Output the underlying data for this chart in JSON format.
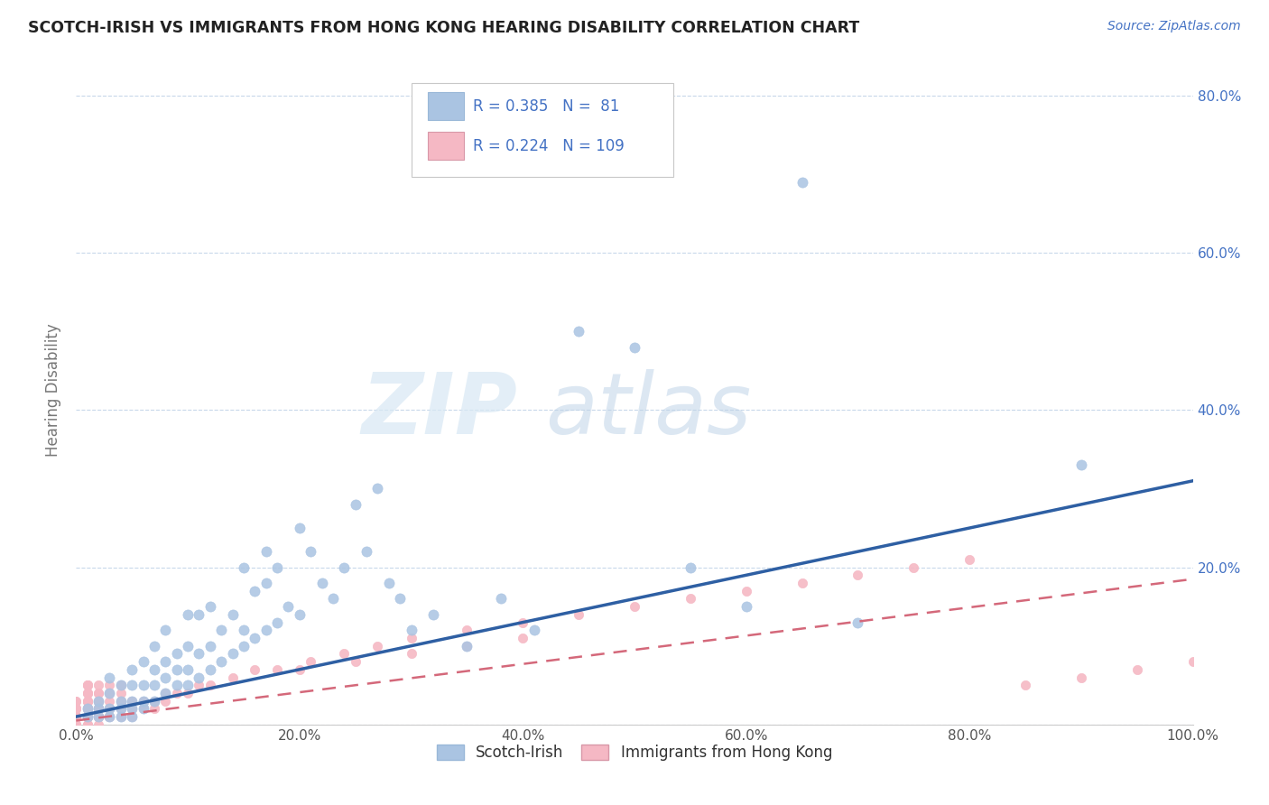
{
  "title": "SCOTCH-IRISH VS IMMIGRANTS FROM HONG KONG HEARING DISABILITY CORRELATION CHART",
  "source": "Source: ZipAtlas.com",
  "ylabel": "Hearing Disability",
  "xlim": [
    0.0,
    1.0
  ],
  "ylim": [
    0.0,
    0.85
  ],
  "R_blue": 0.385,
  "N_blue": 81,
  "R_pink": 0.224,
  "N_pink": 109,
  "legend_labels": [
    "Scotch-Irish",
    "Immigrants from Hong Kong"
  ],
  "blue_color": "#aac4e2",
  "pink_color": "#f5b8c4",
  "blue_line_color": "#2e5fa3",
  "pink_line_color": "#d4687a",
  "watermark_zip": "ZIP",
  "watermark_atlas": "atlas",
  "background_color": "#ffffff",
  "grid_color": "#c8d8ea",
  "title_color": "#222222",
  "legend_text_color": "#4472c4",
  "blue_scatter_x": [
    0.01,
    0.01,
    0.02,
    0.02,
    0.02,
    0.03,
    0.03,
    0.03,
    0.03,
    0.04,
    0.04,
    0.04,
    0.04,
    0.05,
    0.05,
    0.05,
    0.05,
    0.05,
    0.06,
    0.06,
    0.06,
    0.06,
    0.07,
    0.07,
    0.07,
    0.07,
    0.08,
    0.08,
    0.08,
    0.08,
    0.09,
    0.09,
    0.09,
    0.1,
    0.1,
    0.1,
    0.1,
    0.11,
    0.11,
    0.11,
    0.12,
    0.12,
    0.12,
    0.13,
    0.13,
    0.14,
    0.14,
    0.15,
    0.15,
    0.15,
    0.16,
    0.16,
    0.17,
    0.17,
    0.17,
    0.18,
    0.18,
    0.19,
    0.2,
    0.2,
    0.21,
    0.22,
    0.23,
    0.24,
    0.25,
    0.26,
    0.27,
    0.28,
    0.29,
    0.3,
    0.32,
    0.35,
    0.38,
    0.41,
    0.45,
    0.5,
    0.55,
    0.6,
    0.65,
    0.7,
    0.9
  ],
  "blue_scatter_y": [
    0.01,
    0.02,
    0.01,
    0.02,
    0.03,
    0.01,
    0.02,
    0.04,
    0.06,
    0.01,
    0.02,
    0.03,
    0.05,
    0.01,
    0.02,
    0.03,
    0.05,
    0.07,
    0.02,
    0.03,
    0.05,
    0.08,
    0.03,
    0.05,
    0.07,
    0.1,
    0.04,
    0.06,
    0.08,
    0.12,
    0.05,
    0.07,
    0.09,
    0.05,
    0.07,
    0.1,
    0.14,
    0.06,
    0.09,
    0.14,
    0.07,
    0.1,
    0.15,
    0.08,
    0.12,
    0.09,
    0.14,
    0.1,
    0.12,
    0.2,
    0.11,
    0.17,
    0.12,
    0.18,
    0.22,
    0.13,
    0.2,
    0.15,
    0.14,
    0.25,
    0.22,
    0.18,
    0.16,
    0.2,
    0.28,
    0.22,
    0.3,
    0.18,
    0.16,
    0.12,
    0.14,
    0.1,
    0.16,
    0.12,
    0.5,
    0.48,
    0.2,
    0.15,
    0.69,
    0.13,
    0.33
  ],
  "pink_scatter_x": [
    0.0,
    0.0,
    0.0,
    0.0,
    0.0,
    0.0,
    0.0,
    0.0,
    0.0,
    0.0,
    0.0,
    0.0,
    0.0,
    0.0,
    0.0,
    0.0,
    0.0,
    0.0,
    0.0,
    0.0,
    0.01,
    0.01,
    0.01,
    0.01,
    0.01,
    0.01,
    0.01,
    0.01,
    0.01,
    0.01,
    0.01,
    0.01,
    0.01,
    0.01,
    0.01,
    0.01,
    0.01,
    0.01,
    0.01,
    0.01,
    0.01,
    0.01,
    0.01,
    0.01,
    0.01,
    0.02,
    0.02,
    0.02,
    0.02,
    0.02,
    0.02,
    0.02,
    0.02,
    0.02,
    0.02,
    0.02,
    0.02,
    0.02,
    0.03,
    0.03,
    0.03,
    0.03,
    0.03,
    0.03,
    0.03,
    0.04,
    0.04,
    0.04,
    0.04,
    0.04,
    0.05,
    0.05,
    0.05,
    0.06,
    0.06,
    0.07,
    0.07,
    0.08,
    0.08,
    0.09,
    0.1,
    0.11,
    0.12,
    0.14,
    0.16,
    0.18,
    0.21,
    0.24,
    0.27,
    0.3,
    0.35,
    0.4,
    0.45,
    0.5,
    0.55,
    0.6,
    0.65,
    0.7,
    0.75,
    0.8,
    0.85,
    0.9,
    0.95,
    1.0,
    0.2,
    0.25,
    0.3,
    0.35,
    0.4
  ],
  "pink_scatter_y": [
    0.0,
    0.0,
    0.0,
    0.0,
    0.0,
    0.01,
    0.01,
    0.01,
    0.01,
    0.01,
    0.01,
    0.01,
    0.01,
    0.01,
    0.02,
    0.02,
    0.02,
    0.02,
    0.03,
    0.03,
    0.0,
    0.0,
    0.0,
    0.01,
    0.01,
    0.01,
    0.01,
    0.01,
    0.01,
    0.01,
    0.02,
    0.02,
    0.02,
    0.02,
    0.02,
    0.03,
    0.03,
    0.03,
    0.03,
    0.04,
    0.04,
    0.04,
    0.05,
    0.05,
    0.05,
    0.0,
    0.01,
    0.01,
    0.01,
    0.01,
    0.02,
    0.02,
    0.02,
    0.03,
    0.03,
    0.04,
    0.04,
    0.05,
    0.01,
    0.01,
    0.02,
    0.02,
    0.03,
    0.04,
    0.05,
    0.01,
    0.02,
    0.03,
    0.04,
    0.05,
    0.01,
    0.02,
    0.03,
    0.02,
    0.03,
    0.02,
    0.03,
    0.03,
    0.04,
    0.04,
    0.04,
    0.05,
    0.05,
    0.06,
    0.07,
    0.07,
    0.08,
    0.09,
    0.1,
    0.11,
    0.12,
    0.13,
    0.14,
    0.15,
    0.16,
    0.17,
    0.18,
    0.19,
    0.2,
    0.21,
    0.05,
    0.06,
    0.07,
    0.08,
    0.07,
    0.08,
    0.09,
    0.1,
    0.11
  ]
}
